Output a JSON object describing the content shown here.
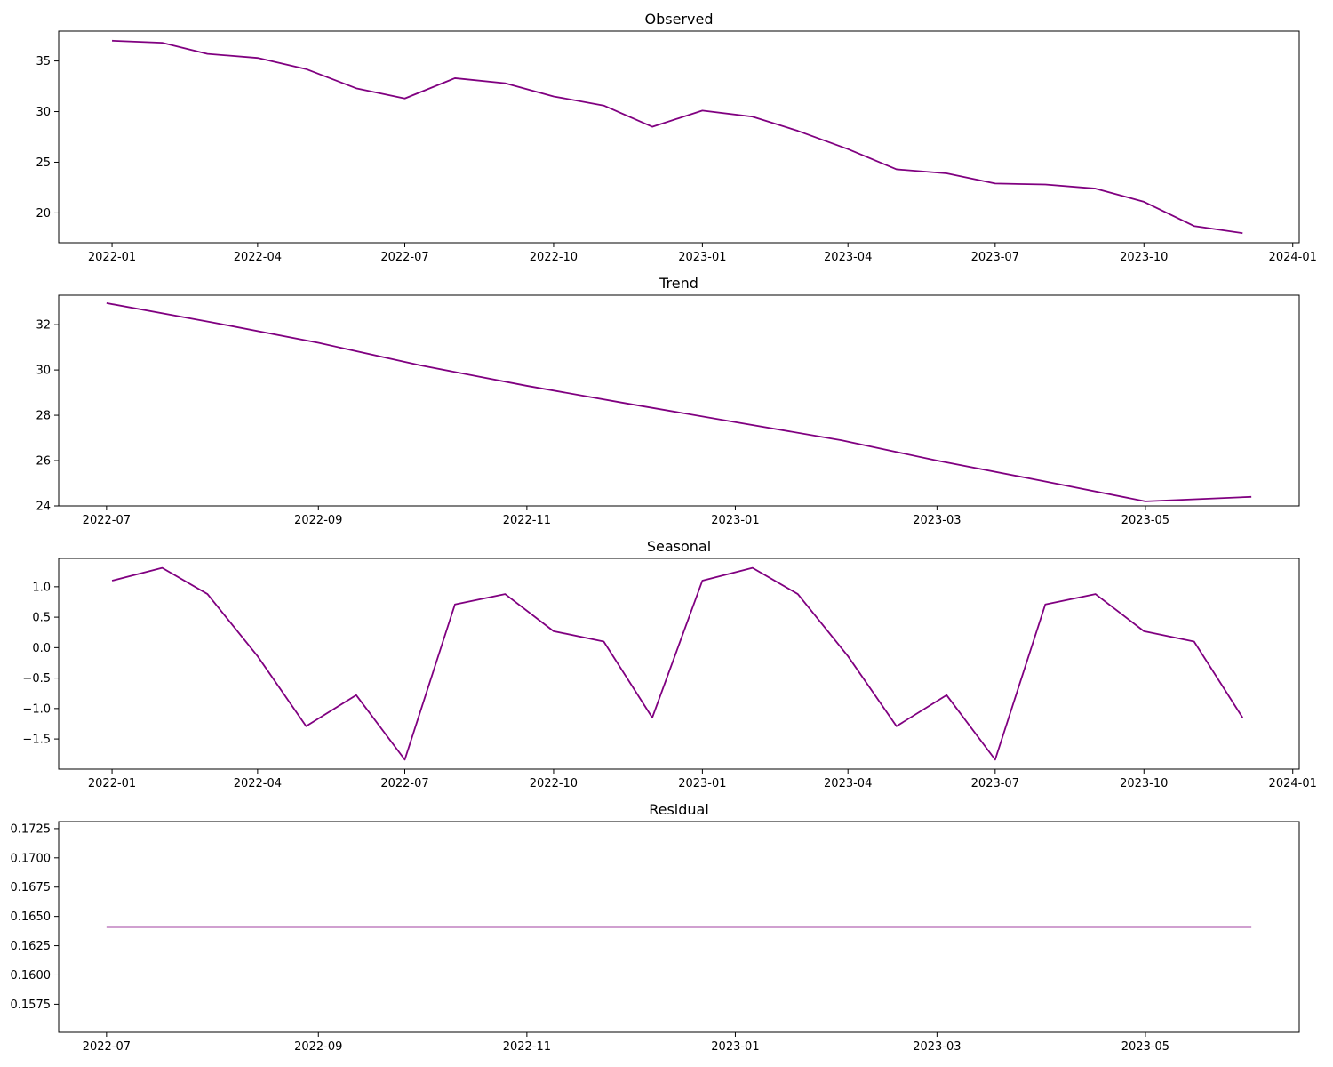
{
  "chart_data": [
    {
      "type": "line",
      "title": "Observed",
      "xlabel": "",
      "ylabel": "",
      "x": [
        "2022-01-01",
        "2022-02-01",
        "2022-03-01",
        "2022-04-01",
        "2022-05-01",
        "2022-06-01",
        "2022-07-01",
        "2022-08-01",
        "2022-09-01",
        "2022-10-01",
        "2022-11-01",
        "2022-12-01",
        "2023-01-01",
        "2023-02-01",
        "2023-03-01",
        "2023-04-01",
        "2023-05-01",
        "2023-06-01",
        "2023-07-01",
        "2023-08-01",
        "2023-09-01",
        "2023-10-01",
        "2023-11-01",
        "2023-12-01"
      ],
      "series": [
        {
          "values": [
            37.0,
            36.8,
            35.7,
            35.3,
            34.2,
            32.3,
            31.3,
            33.3,
            32.8,
            31.5,
            30.6,
            28.5,
            30.1,
            29.5,
            28.1,
            26.3,
            24.3,
            23.9,
            22.9,
            22.8,
            22.4,
            21.1,
            18.7,
            18.0
          ]
        }
      ],
      "xlim": [
        "2021-11-29",
        "2024-01-05"
      ],
      "ylim": [
        17.05,
        37.95
      ],
      "xticks": [
        "2022-01",
        "2022-04",
        "2022-07",
        "2022-10",
        "2023-01",
        "2023-04",
        "2023-07",
        "2023-10",
        "2024-01"
      ],
      "yticks": [
        20,
        25,
        30,
        35
      ],
      "grid": false,
      "legend": "none",
      "color": "#800080"
    },
    {
      "type": "line",
      "title": "Trend",
      "xlabel": "",
      "ylabel": "",
      "x": [
        "2022-07-01",
        "2022-08-01",
        "2022-09-01",
        "2022-10-01",
        "2022-11-01",
        "2022-12-01",
        "2023-01-01",
        "2023-02-01",
        "2023-03-01",
        "2023-04-01",
        "2023-05-01",
        "2023-06-01"
      ],
      "series": [
        {
          "values": [
            32.95,
            32.1,
            31.2,
            30.2,
            29.3,
            28.5,
            27.7,
            26.9,
            26.0,
            25.1,
            24.2,
            24.4
          ]
        }
      ],
      "xlim": [
        "2022-06-17",
        "2023-06-15"
      ],
      "ylim": [
        24.0,
        33.3
      ],
      "xticks": [
        "2022-07",
        "2022-09",
        "2022-11",
        "2023-01",
        "2023-03",
        "2023-05"
      ],
      "yticks": [
        24,
        26,
        28,
        30,
        32
      ],
      "grid": false,
      "legend": "none",
      "color": "#800080"
    },
    {
      "type": "line",
      "title": "Seasonal",
      "xlabel": "",
      "ylabel": "",
      "x": [
        "2022-01-01",
        "2022-02-01",
        "2022-03-01",
        "2022-04-01",
        "2022-05-01",
        "2022-06-01",
        "2022-07-01",
        "2022-08-01",
        "2022-09-01",
        "2022-10-01",
        "2022-11-01",
        "2022-12-01",
        "2023-01-01",
        "2023-02-01",
        "2023-03-01",
        "2023-04-01",
        "2023-05-01",
        "2023-06-01",
        "2023-07-01",
        "2023-08-01",
        "2023-09-01",
        "2023-10-01",
        "2023-11-01",
        "2023-12-01"
      ],
      "series": [
        {
          "values": [
            1.1,
            1.31,
            0.88,
            -0.14,
            -1.29,
            -0.78,
            -1.84,
            0.71,
            0.88,
            0.27,
            0.1,
            -1.15,
            1.1,
            1.31,
            0.88,
            -0.14,
            -1.29,
            -0.78,
            -1.84,
            0.71,
            0.88,
            0.27,
            0.1,
            -1.15
          ]
        }
      ],
      "xlim": [
        "2021-11-29",
        "2024-01-05"
      ],
      "ylim": [
        -1.995,
        1.465
      ],
      "xticks": [
        "2022-01",
        "2022-04",
        "2022-07",
        "2022-10",
        "2023-01",
        "2023-04",
        "2023-07",
        "2023-10",
        "2024-01"
      ],
      "yticks": [
        -1.5,
        -1.0,
        -0.5,
        0.0,
        0.5,
        1.0
      ],
      "grid": false,
      "legend": "none",
      "color": "#800080"
    },
    {
      "type": "line",
      "title": "Residual",
      "xlabel": "",
      "ylabel": "",
      "x": [
        "2022-07-01",
        "2022-08-01",
        "2022-09-01",
        "2022-10-01",
        "2022-11-01",
        "2022-12-01",
        "2023-01-01",
        "2023-02-01",
        "2023-03-01",
        "2023-04-01",
        "2023-05-01",
        "2023-06-01"
      ],
      "series": [
        {
          "values": [
            0.1641,
            0.1641,
            0.1641,
            0.1641,
            0.1641,
            0.1641,
            0.1641,
            0.1641,
            0.1641,
            0.1641,
            0.1641,
            0.1641
          ]
        }
      ],
      "xlim": [
        "2022-06-17",
        "2023-06-15"
      ],
      "ylim": [
        0.1551,
        0.1731
      ],
      "xticks": [
        "2022-07",
        "2022-09",
        "2022-11",
        "2023-01",
        "2023-03",
        "2023-05"
      ],
      "yticks": [
        0.1575,
        0.16,
        0.1625,
        0.165,
        0.1675,
        0.17,
        0.1725
      ],
      "ytick_format": 4,
      "grid": false,
      "legend": "none",
      "color": "#800080"
    }
  ]
}
